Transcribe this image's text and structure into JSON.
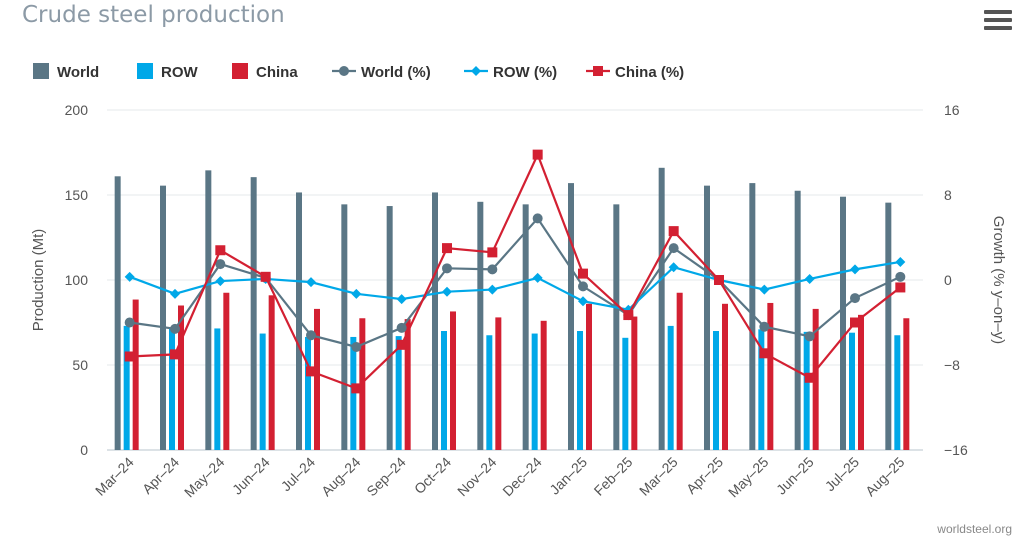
{
  "title": "Crude steel production",
  "credit": "worldsteel.org",
  "chart_data": {
    "type": "bar",
    "title": "Crude steel production",
    "categories": [
      "Mar–24",
      "Apr–24",
      "May–24",
      "Jun–24",
      "Jul–24",
      "Aug–24",
      "Sep–24",
      "Oct–24",
      "Nov–24",
      "Dec–24",
      "Jan–25",
      "Feb–25",
      "Mar–25",
      "Apr–25",
      "May–25",
      "Jun–25",
      "Jul–25",
      "Aug–25"
    ],
    "ylabel": "Production (Mt)",
    "y2label": "Growth (% y–on–y)",
    "ylim": [
      0,
      200
    ],
    "yticks": [
      0,
      50,
      100,
      150,
      200
    ],
    "y2lim": [
      -16,
      16
    ],
    "y2ticks": [
      -16,
      -8,
      0,
      8,
      16
    ],
    "y2tick_labels": [
      "−16",
      "−8",
      "0",
      "8",
      "16"
    ],
    "legend_position": "top-left",
    "grid": true,
    "bar_series": [
      {
        "name": "World",
        "color": "#5a7685",
        "values": [
          161.0,
          155.5,
          164.5,
          160.5,
          151.5,
          144.5,
          143.5,
          151.5,
          146.0,
          144.5,
          157.0,
          144.5,
          166.0,
          155.5,
          157.0,
          152.5,
          149.0,
          145.5
        ]
      },
      {
        "name": "ROW",
        "color": "#00a8e8",
        "values": [
          73.0,
          72.0,
          71.5,
          68.5,
          66.5,
          66.5,
          67.0,
          70.0,
          67.5,
          68.5,
          70.0,
          66.0,
          73.0,
          70.0,
          71.0,
          69.5,
          69.0,
          67.5
        ]
      },
      {
        "name": "China",
        "color": "#d32032",
        "values": [
          88.5,
          85.0,
          92.5,
          91.0,
          83.0,
          77.5,
          77.0,
          81.5,
          78.0,
          76.0,
          86.0,
          78.5,
          92.5,
          86.0,
          86.5,
          83.0,
          79.5,
          77.5
        ]
      }
    ],
    "line_series": [
      {
        "name": "World (%)",
        "color": "#5a7685",
        "marker": "circle",
        "values": [
          -4.0,
          -4.6,
          1.5,
          0.2,
          -5.2,
          -6.3,
          -4.5,
          1.1,
          1.0,
          5.8,
          -0.6,
          -3.3,
          3.0,
          0.0,
          -4.4,
          -5.3,
          -1.7,
          0.3
        ]
      },
      {
        "name": "ROW (%)",
        "color": "#00a8e8",
        "marker": "diamond",
        "values": [
          0.3,
          -1.3,
          -0.1,
          0.1,
          -0.2,
          -1.3,
          -1.8,
          -1.1,
          -0.9,
          0.2,
          -2.0,
          -2.8,
          1.2,
          0.0,
          -0.9,
          0.1,
          1.0,
          1.7
        ]
      },
      {
        "name": "China (%)",
        "color": "#d32032",
        "marker": "square",
        "values": [
          -7.2,
          -7.0,
          2.8,
          0.3,
          -8.6,
          -10.2,
          -6.1,
          3.0,
          2.6,
          11.8,
          0.6,
          -3.3,
          4.6,
          0.0,
          -6.9,
          -9.2,
          -4.0,
          -0.7
        ]
      }
    ]
  }
}
